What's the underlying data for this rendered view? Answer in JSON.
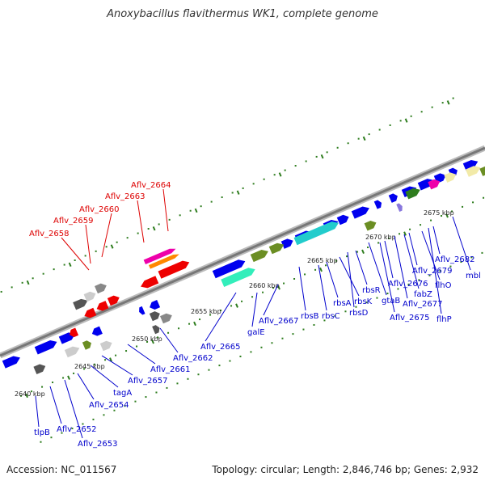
{
  "title": "Anoxybacillus flavithermus WK1, complete genome",
  "footer": {
    "accession": "Accession: NC_011567",
    "summary": "Topology: circular; Length: 2,846,746 bp; Genes: 2,932"
  },
  "scale_labels": [
    "2640 kbp",
    "2645 kbp",
    "2650 kbp",
    "2655 kbp",
    "2660 kbp",
    "2665 kbp",
    "2670 kbp",
    "2675 kbp"
  ],
  "gene_labels_upper": [
    "Aflv_2658",
    "Aflv_2659",
    "Aflv_2660",
    "Aflv_2663",
    "Aflv_2664"
  ],
  "gene_labels_lower": [
    "tlpB",
    "Aflv_2652",
    "Aflv_2653",
    "Aflv_2654",
    "tagA",
    "Aflv_2657",
    "Aflv_2661",
    "Aflv_2662",
    "Aflv_2665",
    "galE",
    "Aflv_2667",
    "rbsB",
    "rbsC",
    "rbsA",
    "rbsK",
    "rbsD",
    "rbsR",
    "gtaB",
    "Aflv_2675",
    "Aflv_2676",
    "Aflv_2677",
    "fabZ",
    "Aflv_2679",
    "flhO",
    "flhP",
    "Aflv_2682",
    "mbl"
  ],
  "colors": {
    "blue": "#0000ee",
    "gray_dark": "#555555",
    "gray_mid": "#888888",
    "gray_light": "#cccccc",
    "red": "#ee0000",
    "magenta": "#ee00aa",
    "orange": "#ff8800",
    "olive": "#6b8e23",
    "dark_green": "#2e7d1e",
    "cyan": "#22cccc",
    "aquamarine": "#33eebb",
    "pale_yellow": "#f2eaa8",
    "lavender": "#8877dd",
    "label_blue": "#0000cc",
    "label_red": "#dd0000",
    "tick_green": "#2e7d1e"
  }
}
